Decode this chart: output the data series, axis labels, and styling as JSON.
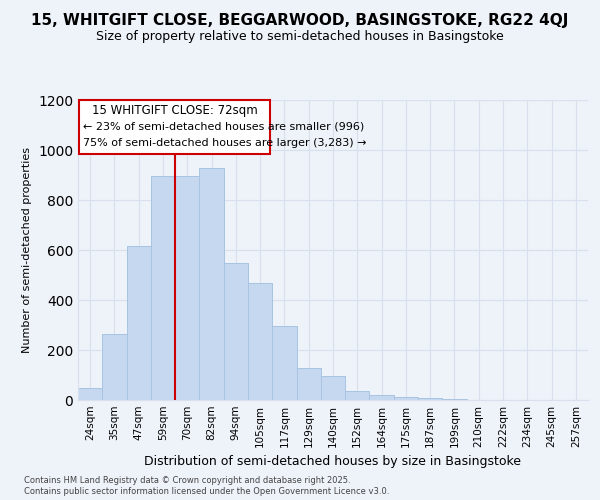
{
  "title": "15, WHITGIFT CLOSE, BEGGARWOOD, BASINGSTOKE, RG22 4QJ",
  "subtitle": "Size of property relative to semi-detached houses in Basingstoke",
  "xlabel": "Distribution of semi-detached houses by size in Basingstoke",
  "ylabel": "Number of semi-detached properties",
  "categories": [
    "24sqm",
    "35sqm",
    "47sqm",
    "59sqm",
    "70sqm",
    "82sqm",
    "94sqm",
    "105sqm",
    "117sqm",
    "129sqm",
    "140sqm",
    "152sqm",
    "164sqm",
    "175sqm",
    "187sqm",
    "199sqm",
    "210sqm",
    "222sqm",
    "234sqm",
    "245sqm",
    "257sqm"
  ],
  "values": [
    50,
    265,
    615,
    895,
    895,
    930,
    550,
    470,
    295,
    130,
    95,
    38,
    20,
    13,
    10,
    5,
    0,
    0,
    0,
    0,
    0
  ],
  "bar_color": "#c5d8f0",
  "bar_edge_color": "#a8c4e0",
  "property_line_color": "#cc0000",
  "annotation_title": "15 WHITGIFT CLOSE: 72sqm",
  "annotation_line1": "← 23% of semi-detached houses are smaller (996)",
  "annotation_line2": "75% of semi-detached houses are larger (3,283) →",
  "annotation_box_color": "#ffffff",
  "annotation_box_edge_color": "#cc0000",
  "ylim": [
    0,
    1200
  ],
  "yticks": [
    0,
    200,
    400,
    600,
    800,
    1000,
    1200
  ],
  "footer_line1": "Contains HM Land Registry data © Crown copyright and database right 2025.",
  "footer_line2": "Contains public sector information licensed under the Open Government Licence v3.0.",
  "bg_color": "#eef2f9",
  "grid_color": "#d8e0ed",
  "title_fontsize": 11,
  "subtitle_fontsize": 9
}
